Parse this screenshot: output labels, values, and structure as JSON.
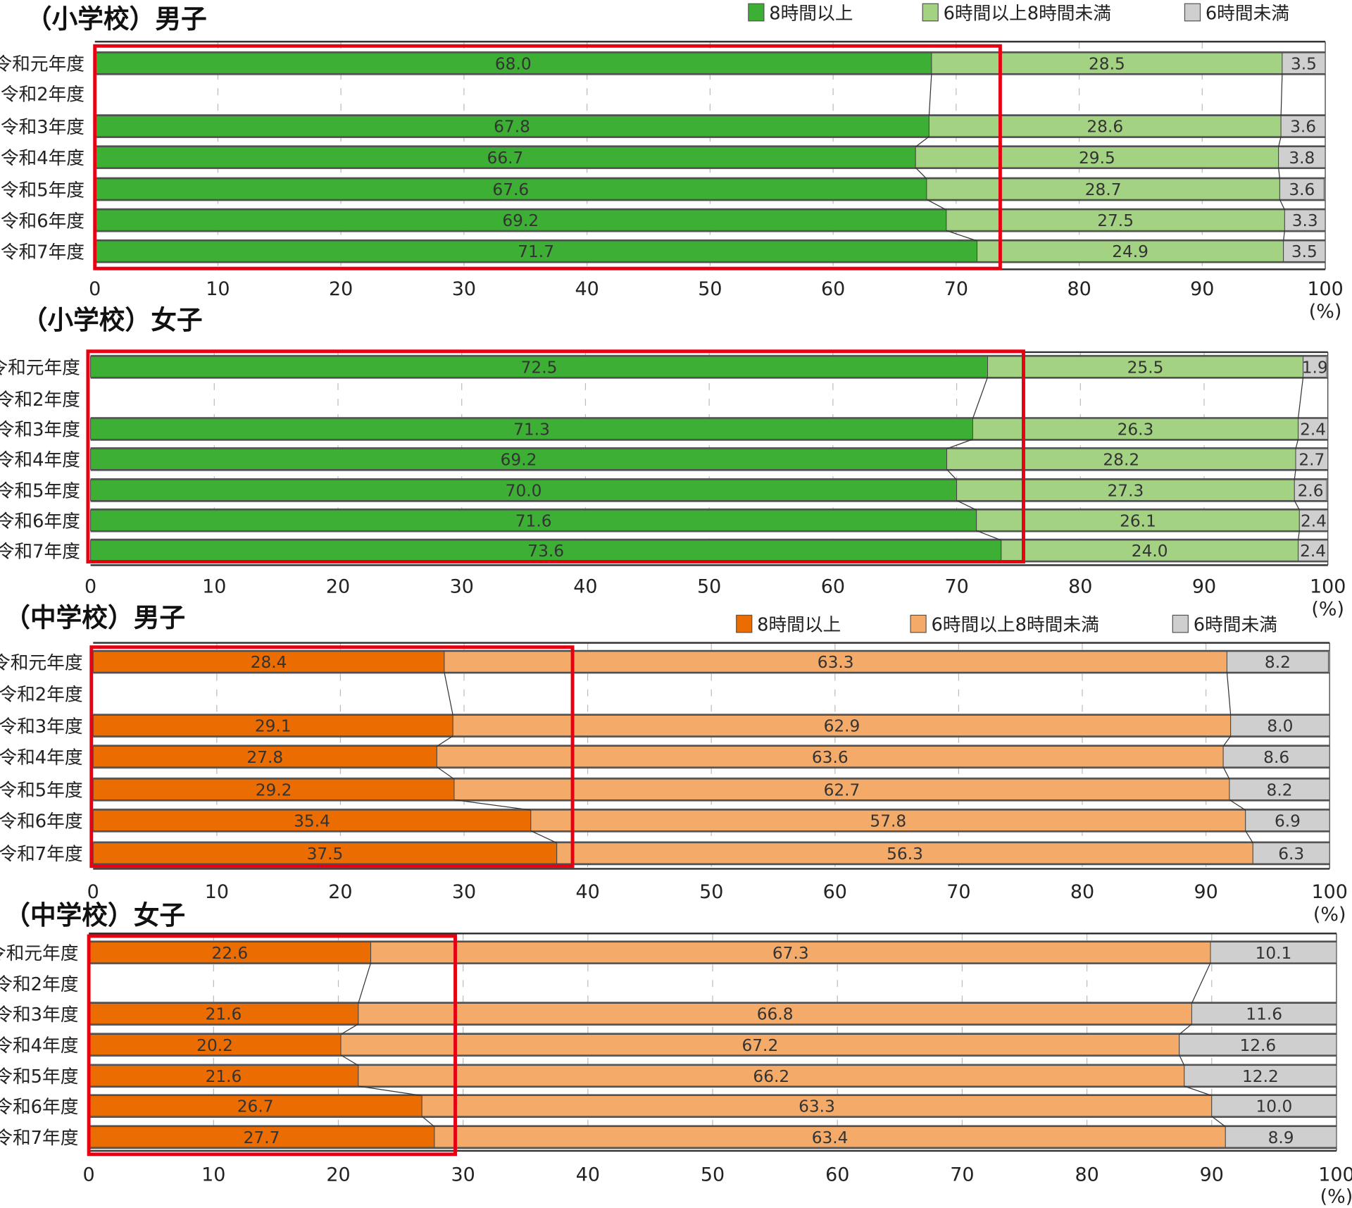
{
  "chart_data": [
    {
      "type": "bar",
      "orientation": "horizontal-stacked",
      "title": "（小学校）男子",
      "categories": [
        "令和元年度",
        "令和2年度",
        "令和3年度",
        "令和4年度",
        "令和5年度",
        "令和6年度",
        "令和7年度"
      ],
      "series": [
        {
          "name": "8時間以上",
          "color": "#3daf35",
          "values": [
            68.0,
            null,
            67.8,
            66.7,
            67.6,
            69.2,
            71.7
          ]
        },
        {
          "name": "6時間以上8時間未満",
          "color": "#a3d283",
          "values": [
            28.5,
            null,
            28.6,
            29.5,
            28.7,
            27.5,
            24.9
          ]
        },
        {
          "name": "6時間未満",
          "color": "#cfcfcf",
          "values": [
            3.5,
            null,
            3.6,
            3.8,
            3.6,
            3.3,
            3.5
          ]
        }
      ],
      "xlim": [
        0,
        100
      ],
      "xticks": [
        "0",
        "10",
        "20",
        "30",
        "40",
        "50",
        "60",
        "70",
        "80",
        "90",
        "100"
      ],
      "unit": "(%)",
      "legend": "top-right",
      "grid": true
    },
    {
      "type": "bar",
      "orientation": "horizontal-stacked",
      "title": "（小学校）女子",
      "categories": [
        "令和元年度",
        "令和2年度",
        "令和3年度",
        "令和4年度",
        "令和5年度",
        "令和6年度",
        "令和7年度"
      ],
      "series": [
        {
          "color": "#3daf35",
          "values": [
            72.5,
            null,
            71.3,
            69.2,
            70.0,
            71.6,
            73.6
          ]
        },
        {
          "color": "#a3d283",
          "values": [
            25.5,
            null,
            26.3,
            28.2,
            27.3,
            26.1,
            24.0
          ]
        },
        {
          "color": "#cfcfcf",
          "values": [
            1.9,
            null,
            2.4,
            2.7,
            2.6,
            2.4,
            2.4
          ]
        }
      ],
      "xlim": [
        0,
        100
      ],
      "xticks": [
        "0",
        "10",
        "20",
        "30",
        "40",
        "50",
        "60",
        "70",
        "80",
        "90",
        "100"
      ],
      "unit": "(%)",
      "grid": true
    },
    {
      "type": "bar",
      "orientation": "horizontal-stacked",
      "title": "（中学校）男子",
      "categories": [
        "令和元年度",
        "令和2年度",
        "令和3年度",
        "令和4年度",
        "令和5年度",
        "令和6年度",
        "令和7年度"
      ],
      "series": [
        {
          "name": "8時間以上",
          "color": "#eb6c00",
          "values": [
            28.4,
            null,
            29.1,
            27.8,
            29.2,
            35.4,
            37.5
          ]
        },
        {
          "name": "6時間以上8時間未満",
          "color": "#f4ab6a",
          "values": [
            63.3,
            null,
            62.9,
            63.6,
            62.7,
            57.8,
            56.3
          ]
        },
        {
          "name": "6時間未満",
          "color": "#cfcfcf",
          "values": [
            8.2,
            null,
            8.0,
            8.6,
            8.2,
            6.9,
            6.3
          ]
        }
      ],
      "xlim": [
        0,
        100
      ],
      "xticks": [
        "0",
        "10",
        "20",
        "30",
        "40",
        "50",
        "60",
        "70",
        "80",
        "90",
        "100"
      ],
      "unit": "(%)",
      "legend": "top-right",
      "grid": true
    },
    {
      "type": "bar",
      "orientation": "horizontal-stacked",
      "title": "（中学校）女子",
      "categories": [
        "令和元年度",
        "令和2年度",
        "令和3年度",
        "令和4年度",
        "令和5年度",
        "令和6年度",
        "令和7年度"
      ],
      "series": [
        {
          "color": "#eb6c00",
          "values": [
            22.6,
            null,
            21.6,
            20.2,
            21.6,
            26.7,
            27.7
          ]
        },
        {
          "color": "#f4ab6a",
          "values": [
            67.3,
            null,
            66.8,
            67.2,
            66.2,
            63.3,
            63.4
          ]
        },
        {
          "color": "#cfcfcf",
          "values": [
            10.1,
            null,
            11.6,
            12.6,
            12.2,
            10.0,
            8.9
          ]
        }
      ],
      "xlim": [
        0,
        100
      ],
      "xticks": [
        "0",
        "10",
        "20",
        "30",
        "40",
        "50",
        "60",
        "70",
        "80",
        "90",
        "100"
      ],
      "unit": "(%)",
      "grid": true
    }
  ],
  "highlight_color": "#e60012"
}
